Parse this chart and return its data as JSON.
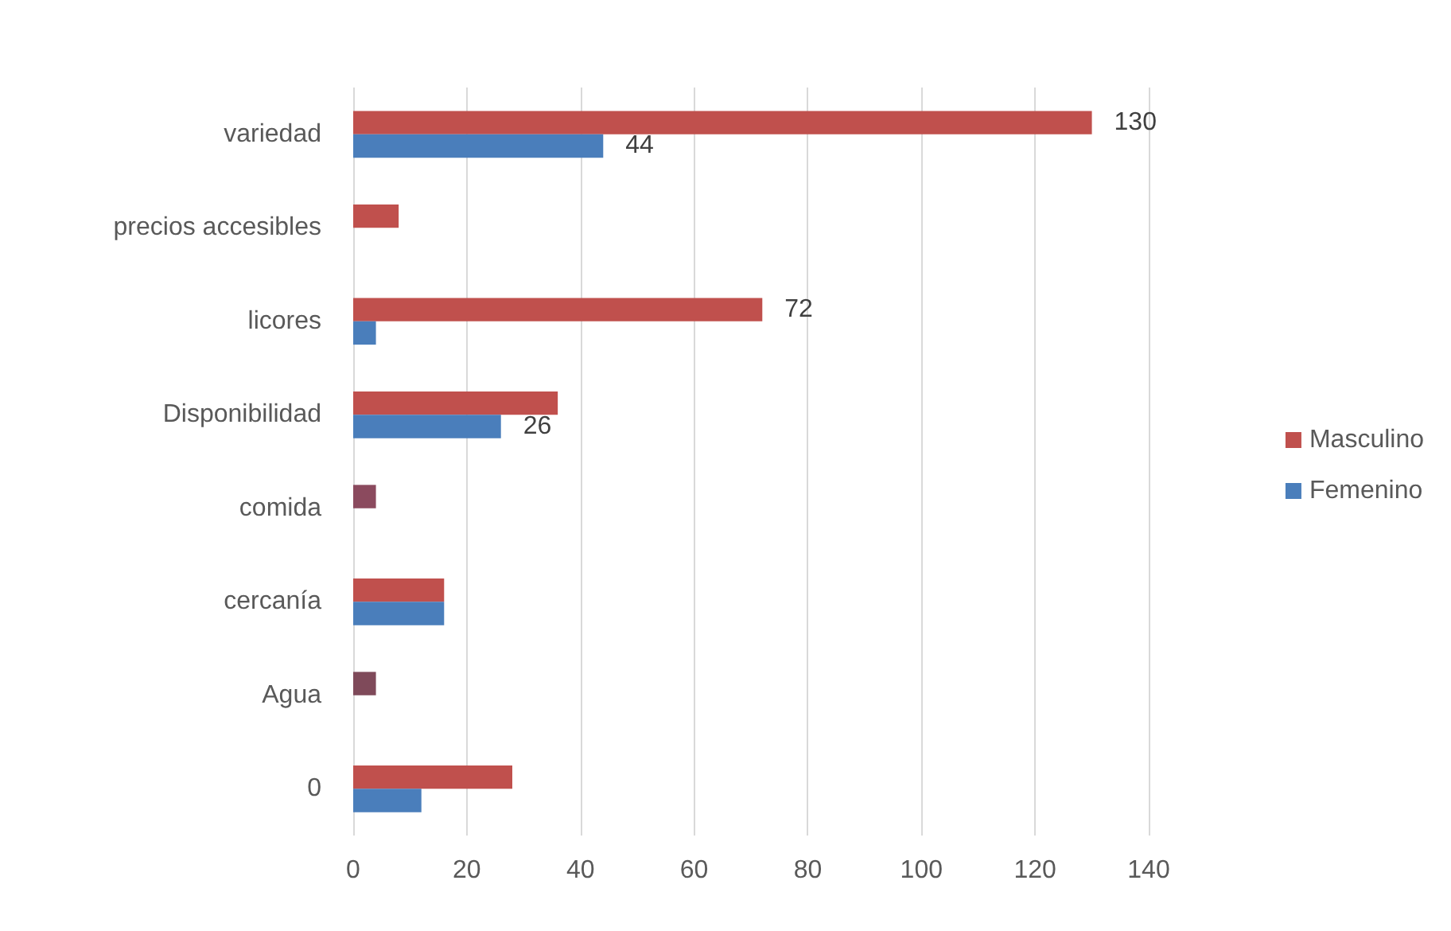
{
  "chart_data": {
    "type": "bar",
    "orientation": "horizontal",
    "categories": [
      "variedad",
      "precios accesibles",
      "licores",
      "Disponibilidad",
      "comida",
      "cercanía",
      "Agua",
      "0"
    ],
    "series": [
      {
        "name": "Masculino",
        "color": "#c0504d",
        "colors": [
          "#c0504d",
          "#c0504d",
          "#c0504d",
          "#c0504d",
          "#8b4a5e",
          "#c0504d",
          "#7f4a5a",
          "#c0504d"
        ],
        "values": [
          130,
          8,
          72,
          36,
          4,
          16,
          4,
          28
        ],
        "value_labels": [
          "130",
          null,
          "72",
          null,
          null,
          null,
          null,
          null
        ]
      },
      {
        "name": "Femenino",
        "color": "#4a7ebb",
        "values": [
          44,
          null,
          4,
          26,
          null,
          16,
          null,
          12
        ],
        "value_labels": [
          "44",
          null,
          null,
          "26",
          null,
          null,
          null,
          null
        ]
      }
    ],
    "xlim": [
      0,
      140
    ],
    "xticks": [
      0,
      20,
      40,
      60,
      80,
      100,
      120,
      140
    ],
    "grid": "x",
    "legend": "right"
  }
}
